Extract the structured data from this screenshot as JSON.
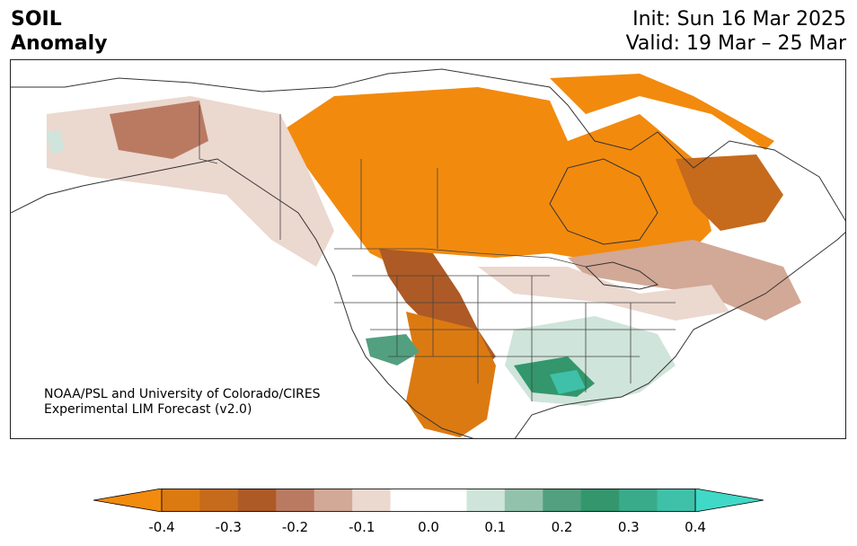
{
  "title": {
    "line1": "SOIL",
    "line2": "Anomaly"
  },
  "header": {
    "init": "Init: Sun 16 Mar 2025",
    "valid": "Valid: 19 Mar – 25 Mar"
  },
  "credit": {
    "line1": "NOAA/PSL and University of Colorado/CIRES",
    "line2": "Experimental LIM Forecast (v2.0)"
  },
  "colorbar": {
    "min": -0.4,
    "max": 0.4,
    "extend": "both",
    "colors": [
      "#f28a0e",
      "#dc7a12",
      "#c66a1c",
      "#ae5a26",
      "#ba7a62",
      "#d2a896",
      "#ebd8cf",
      "#ffffff",
      "#ffffff",
      "#cfe4da",
      "#92c2ab",
      "#52a080",
      "#33966c",
      "#3aab8a",
      "#3fc0a8",
      "#40d8c6"
    ],
    "ticks": [
      "-0.4",
      "-0.3",
      "-0.2",
      "-0.1",
      "0.0",
      "0.1",
      "0.2",
      "0.3",
      "0.4"
    ]
  },
  "legend_colors": {
    "strong_dry": "#f28a0e",
    "dry": "#ae5a26",
    "slight_dry": "#ebd8cf",
    "wet": "#33966c",
    "strong_wet": "#3fc0a8"
  }
}
